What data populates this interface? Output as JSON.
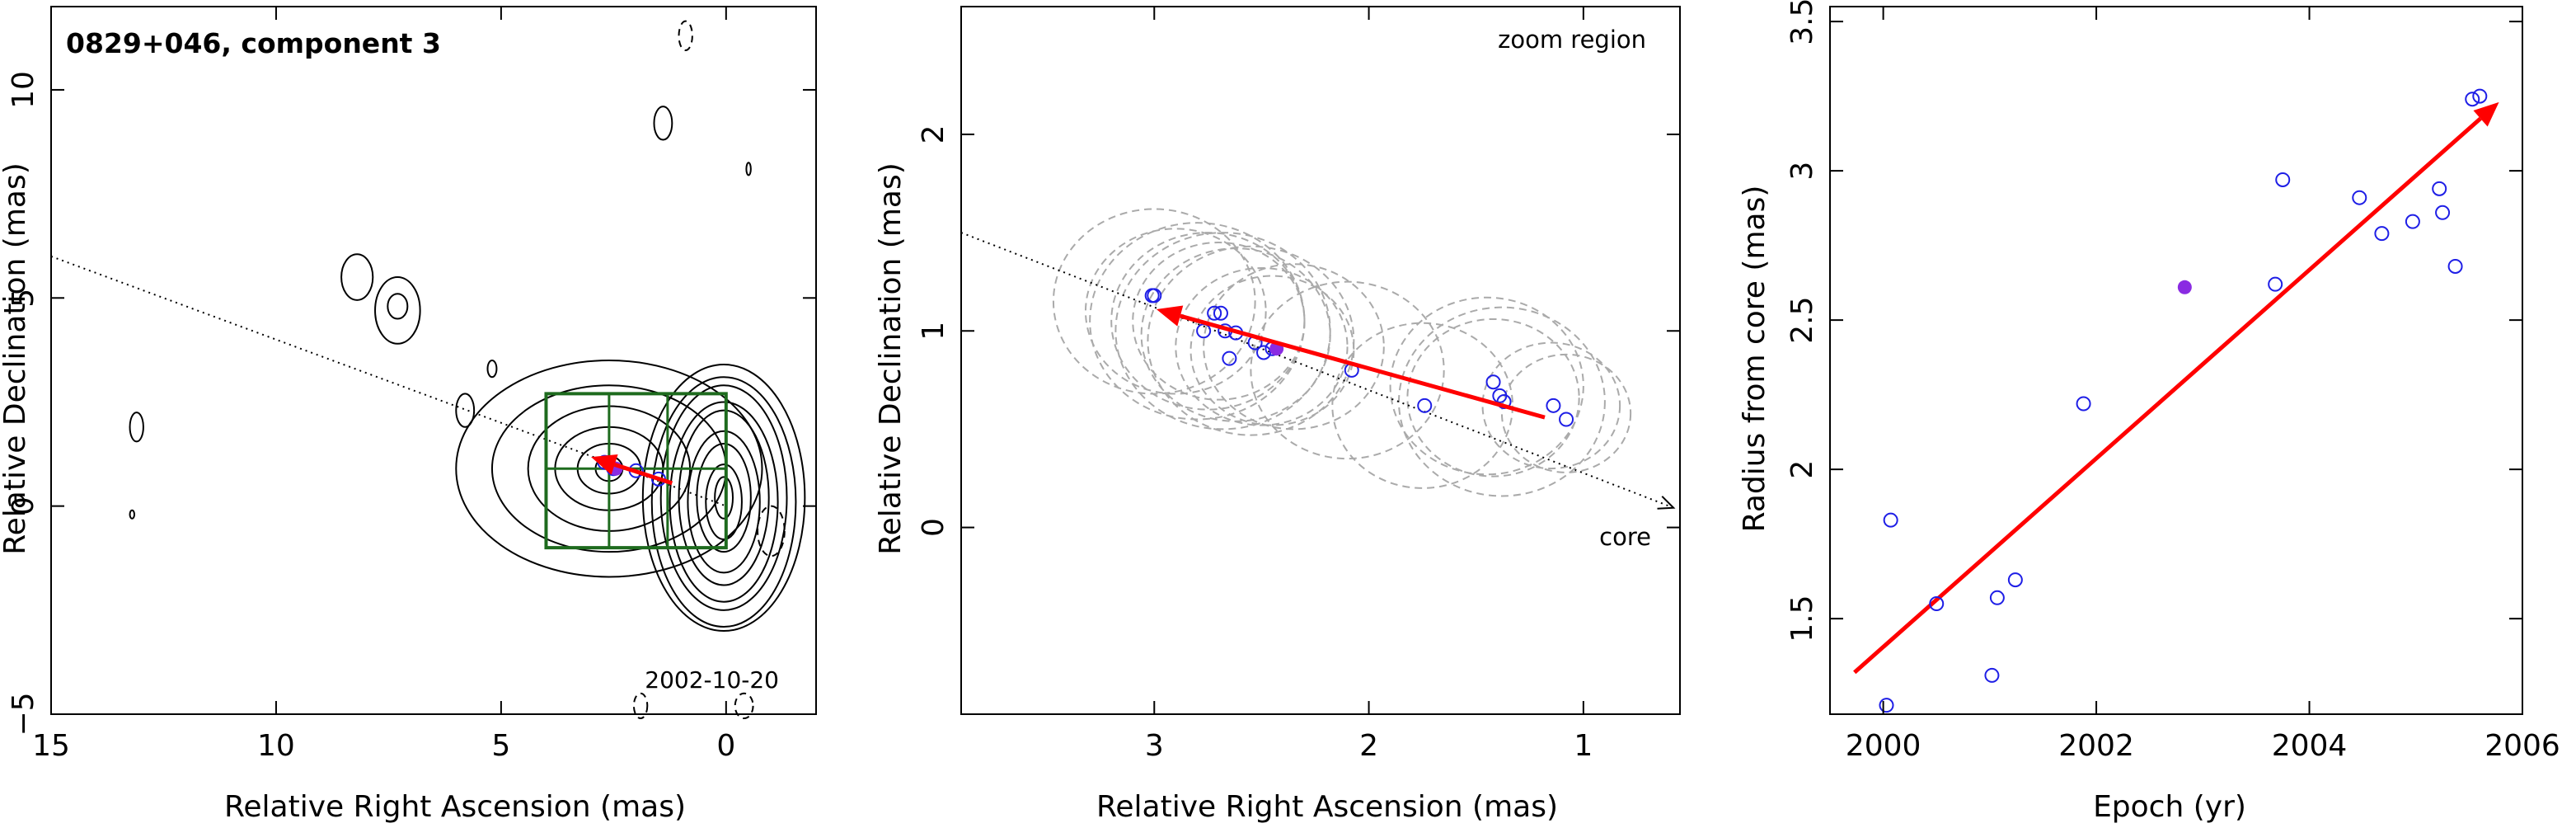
{
  "colors": {
    "contour": "#000000",
    "box": "#1e6b1e",
    "arrow": "#ff0000",
    "point": "#1e1ee6",
    "filled_point": "#8a2be2",
    "circle": "#aaaaaa"
  },
  "chart_data": [
    {
      "type": "contour",
      "title": "0829+046, component 3",
      "annotation": "2002-10-20",
      "xlabel": "Relative Right Ascension (mas)",
      "ylabel": "Relative Declination (mas)",
      "xlim": [
        15,
        -2
      ],
      "ylim": [
        -5,
        12
      ],
      "xticks": [
        15,
        10,
        5,
        0
      ],
      "xtick_labels": [
        "15",
        "10",
        "5",
        "0"
      ],
      "yticks": [
        -5,
        0,
        5,
        10
      ],
      "ytick_labels": [
        "−5",
        "0",
        "5",
        "10"
      ],
      "direction_line": {
        "from": [
          15,
          6.0
        ],
        "to": [
          0,
          0
        ]
      },
      "zoom_box": {
        "x": [
          4,
          0
        ],
        "y": [
          -1,
          2.7
        ]
      },
      "zoom_grid": {
        "x": [
          2.6,
          1.3
        ],
        "y": [
          0.9
        ]
      },
      "arrow": {
        "from": [
          1.2,
          0.55
        ],
        "to": [
          3.0,
          1.18
        ]
      },
      "points": [
        [
          2.7,
          1.05
        ],
        [
          2.5,
          0.9
        ],
        [
          2.0,
          0.85
        ],
        [
          1.5,
          0.65
        ]
      ],
      "filled_point": [
        2.45,
        0.9
      ],
      "contours": {
        "core_centers": [
          [
            0.05,
            0.2
          ],
          [
            0.05,
            0.1
          ]
        ],
        "core_radii": [
          [
            0.2,
            0.5
          ],
          [
            0.4,
            0.9
          ],
          [
            0.6,
            1.3
          ],
          [
            0.8,
            1.7
          ],
          [
            1.0,
            2.1
          ],
          [
            1.2,
            2.4
          ],
          [
            1.4,
            2.7
          ],
          [
            1.6,
            3.0
          ],
          [
            1.8,
            3.2
          ]
        ],
        "comp3_center": [
          2.6,
          0.9
        ],
        "comp3_radii": [
          [
            0.3,
            0.3
          ],
          [
            0.7,
            0.6
          ],
          [
            1.2,
            1.0
          ],
          [
            1.8,
            1.5
          ],
          [
            2.6,
            2.0
          ],
          [
            3.4,
            2.6
          ]
        ],
        "islands": [
          {
            "c": [
              8.2,
              5.5
            ],
            "r": [
              0.35,
              0.55
            ]
          },
          {
            "c": [
              7.3,
              4.8
            ],
            "r": [
              0.22,
              0.3
            ]
          },
          {
            "c": [
              7.3,
              4.7
            ],
            "r": [
              0.5,
              0.8
            ]
          },
          {
            "c": [
              5.8,
              2.3
            ],
            "r": [
              0.2,
              0.4
            ]
          },
          {
            "c": [
              5.2,
              3.3
            ],
            "r": [
              0.1,
              0.2
            ]
          },
          {
            "c": [
              13.1,
              1.9
            ],
            "r": [
              0.15,
              0.35
            ]
          },
          {
            "c": [
              13.2,
              -0.2
            ],
            "r": [
              0.05,
              0.1
            ]
          },
          {
            "c": [
              1.4,
              9.2
            ],
            "r": [
              0.2,
              0.4
            ]
          },
          {
            "c": [
              -0.5,
              8.1
            ],
            "r": [
              0.05,
              0.15
            ]
          }
        ],
        "dashed": [
          {
            "c": [
              0.9,
              11.3
            ],
            "r": [
              0.15,
              0.35
            ]
          },
          {
            "c": [
              -1.0,
              -0.6
            ],
            "r": [
              0.3,
              0.6
            ]
          },
          {
            "c": [
              -0.4,
              -4.8
            ],
            "r": [
              0.2,
              0.3
            ]
          },
          {
            "c": [
              1.9,
              -4.8
            ],
            "r": [
              0.15,
              0.3
            ]
          }
        ]
      }
    },
    {
      "type": "scatter",
      "annotation": "zoom region",
      "core_label": "core",
      "xlabel": "Relative Right Ascension (mas)",
      "ylabel": "Relative Declination (mas)",
      "xlim": [
        3.9,
        0.55
      ],
      "ylim": [
        -0.95,
        2.65
      ],
      "xticks": [
        3,
        2,
        1
      ],
      "xtick_labels": [
        "3",
        "2",
        "1"
      ],
      "yticks": [
        0,
        1,
        2
      ],
      "ytick_labels": [
        "0",
        "1",
        "2"
      ],
      "direction_line": {
        "from": [
          3.9,
          1.5
        ],
        "to": [
          0.58,
          0.1
        ]
      },
      "arrow": {
        "from": [
          1.18,
          0.56
        ],
        "to": [
          2.99,
          1.11
        ]
      },
      "points": [
        [
          3.01,
          1.18
        ],
        [
          3.0,
          1.18
        ],
        [
          2.77,
          1.0
        ],
        [
          2.72,
          1.09
        ],
        [
          2.69,
          1.09
        ],
        [
          2.67,
          1.0
        ],
        [
          2.65,
          0.86
        ],
        [
          2.62,
          0.99
        ],
        [
          2.53,
          0.94
        ],
        [
          2.49,
          0.89
        ],
        [
          2.45,
          0.91
        ],
        [
          2.08,
          0.8
        ],
        [
          1.74,
          0.62
        ],
        [
          1.42,
          0.74
        ],
        [
          1.39,
          0.67
        ],
        [
          1.37,
          0.64
        ],
        [
          1.14,
          0.62
        ],
        [
          1.08,
          0.55
        ]
      ],
      "filled_point": [
        2.43,
        0.91
      ],
      "circles": [
        {
          "c": [
            3.0,
            1.15
          ],
          "r": 0.47
        },
        {
          "c": [
            2.9,
            1.1
          ],
          "r": 0.42
        },
        {
          "c": [
            2.8,
            1.05
          ],
          "r": 0.5
        },
        {
          "c": [
            2.75,
            1.05
          ],
          "r": 0.45
        },
        {
          "c": [
            2.7,
            1.05
          ],
          "r": 0.4
        },
        {
          "c": [
            2.68,
            1.0
          ],
          "r": 0.5
        },
        {
          "c": [
            2.62,
            0.98
          ],
          "r": 0.44
        },
        {
          "c": [
            2.55,
            0.95
          ],
          "r": 0.48
        },
        {
          "c": [
            2.5,
            0.92
          ],
          "r": 0.4
        },
        {
          "c": [
            2.45,
            0.9
          ],
          "r": 0.38
        },
        {
          "c": [
            2.35,
            0.92
          ],
          "r": 0.42
        },
        {
          "c": [
            2.1,
            0.8
          ],
          "r": 0.45
        },
        {
          "c": [
            1.75,
            0.62
          ],
          "r": 0.42
        },
        {
          "c": [
            1.45,
            0.72
          ],
          "r": 0.45
        },
        {
          "c": [
            1.42,
            0.66
          ],
          "r": 0.4
        },
        {
          "c": [
            1.38,
            0.64
          ],
          "r": 0.48
        },
        {
          "c": [
            1.15,
            0.62
          ],
          "r": 0.32
        },
        {
          "c": [
            1.08,
            0.58
          ],
          "r": 0.3
        }
      ]
    },
    {
      "type": "scatter",
      "xlabel": "Epoch (yr)",
      "ylabel": "Radius from core (mas)",
      "xlim": [
        1999.5,
        2006.0
      ],
      "ylim": [
        1.18,
        3.55
      ],
      "xticks": [
        2000,
        2002,
        2004,
        2006
      ],
      "xtick_labels": [
        "2000",
        "2002",
        "2004",
        "2006"
      ],
      "yticks": [
        1.5,
        2,
        2.5,
        3,
        3.5
      ],
      "ytick_labels": [
        "1.5",
        "2",
        "2.5",
        "3",
        "3.5"
      ],
      "arrow": {
        "from": [
          1999.73,
          1.32
        ],
        "to": [
          2005.78,
          3.23
        ]
      },
      "points": [
        [
          2000.03,
          1.21
        ],
        [
          2000.07,
          1.83
        ],
        [
          2000.5,
          1.55
        ],
        [
          2001.02,
          1.31
        ],
        [
          2001.07,
          1.57
        ],
        [
          2001.24,
          1.63
        ],
        [
          2001.88,
          2.22
        ],
        [
          2003.68,
          2.62
        ],
        [
          2003.75,
          2.97
        ],
        [
          2004.47,
          2.91
        ],
        [
          2004.68,
          2.79
        ],
        [
          2004.97,
          2.83
        ],
        [
          2005.22,
          2.94
        ],
        [
          2005.25,
          2.86
        ],
        [
          2005.37,
          2.68
        ],
        [
          2005.53,
          3.24
        ],
        [
          2005.6,
          3.25
        ]
      ],
      "filled_point": [
        2002.83,
        2.61
      ]
    }
  ]
}
